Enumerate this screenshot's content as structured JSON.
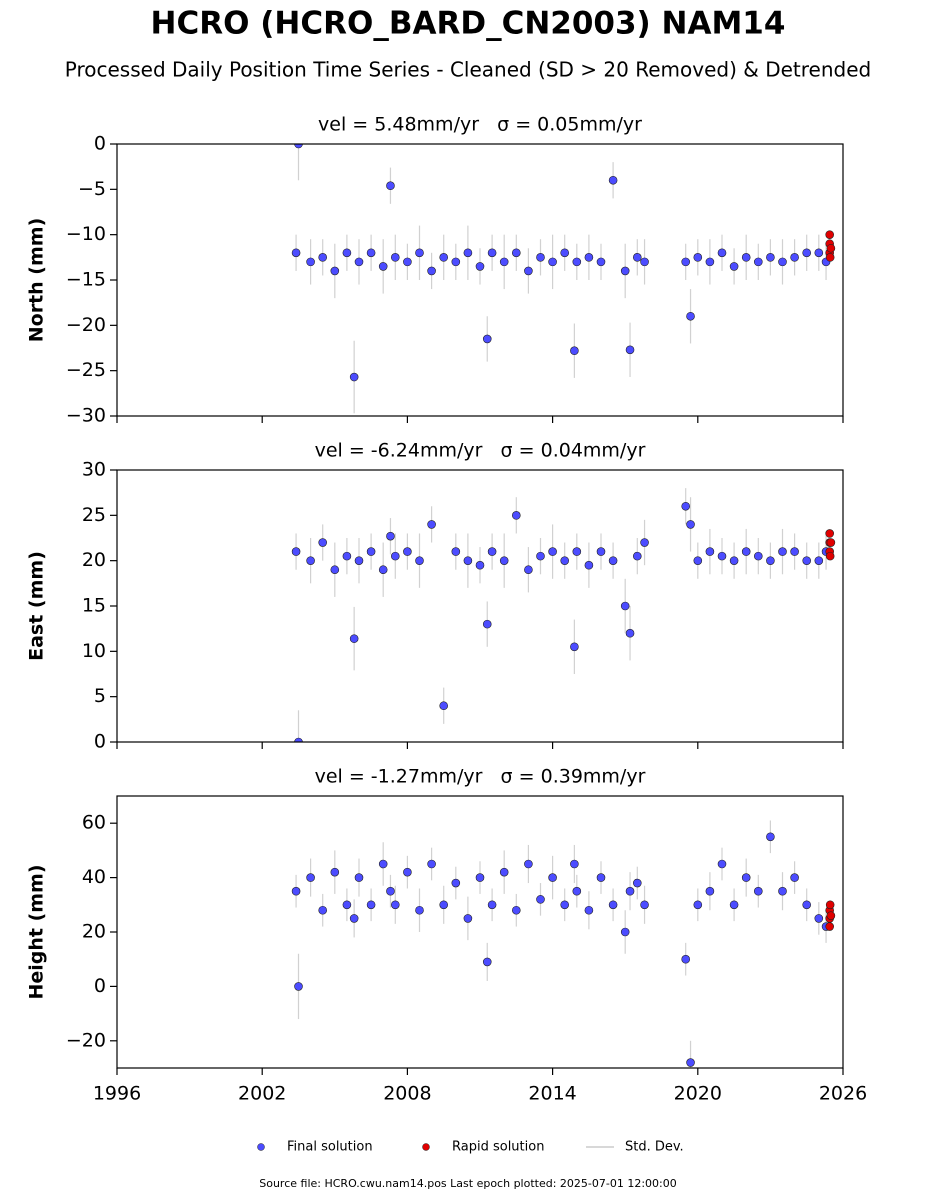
{
  "title": "HCRO (HCRO_BARD_CN2003) NAM14",
  "subtitle": "Processed Daily Position Time Series - Cleaned (SD > 20 Removed) & Detrended",
  "error_name": "Std. Dev.",
  "footer": "Source file: HCRO.cwu.nam14.pos  Last epoch plotted: 2025-07-01 12:00:00",
  "chart_data": [
    {
      "type": "scatter",
      "title": "vel = 5.48mm/yr   σ = 0.05mm/yr",
      "y_label": "North (mm)",
      "xlim": [
        1996,
        2026
      ],
      "xticks": [
        1996,
        2002,
        2008,
        2014,
        2020,
        2026
      ],
      "ylim": [
        -30,
        0
      ],
      "yticks": [
        0,
        {
          "value": -5,
          "label": "−5"
        },
        {
          "value": -10,
          "label": "−10"
        },
        {
          "value": -15,
          "label": "−15"
        },
        {
          "value": -20,
          "label": "−20"
        },
        {
          "value": -25,
          "label": "−25"
        },
        {
          "value": -30,
          "label": "−30"
        }
      ],
      "series": [
        {
          "name": "Final solution",
          "color": "#4c4cff",
          "x": [
            2003.4,
            2003.5,
            2004.0,
            2004.5,
            2005.0,
            2005.5,
            2005.8,
            2006.0,
            2006.5,
            2007.0,
            2007.3,
            2007.5,
            2008.0,
            2008.5,
            2009.0,
            2009.5,
            2010.0,
            2010.5,
            2011.0,
            2011.3,
            2011.5,
            2012.0,
            2012.5,
            2013.0,
            2013.5,
            2014.0,
            2014.5,
            2014.9,
            2015.0,
            2015.5,
            2016.0,
            2016.5,
            2017.0,
            2017.2,
            2017.5,
            2017.8,
            2019.5,
            2019.7,
            2020.0,
            2020.5,
            2021.0,
            2021.5,
            2022.0,
            2022.5,
            2023.0,
            2023.5,
            2024.0,
            2024.5,
            2025.0,
            2025.3
          ],
          "values": [
            -12,
            0,
            -13,
            -12.5,
            -14,
            -12,
            -25.7,
            -13,
            -12,
            -13.5,
            -4.6,
            -12.5,
            -13,
            -12,
            -14,
            -12.5,
            -13,
            -12,
            -13.5,
            -21.5,
            -12,
            -13,
            -12,
            -14,
            -12.5,
            -13,
            -12,
            -22.8,
            -13,
            -12.5,
            -13,
            -4,
            -14,
            -22.7,
            -12.5,
            -13,
            -13,
            -19,
            -12.5,
            -13,
            -12,
            -13.5,
            -12.5,
            -13,
            -12.5,
            -13,
            -12.5,
            -12,
            -12,
            -13
          ],
          "errors": [
            2,
            4,
            2.5,
            2,
            3,
            2,
            4,
            2.5,
            2,
            3,
            2,
            2.5,
            2,
            3,
            2,
            2.5,
            2,
            3,
            2,
            2.5,
            2,
            3,
            2,
            2.5,
            2,
            3,
            2,
            3,
            2,
            2.5,
            2,
            2,
            3,
            3,
            2,
            2.5,
            2,
            3,
            2,
            2.5,
            2,
            2,
            2.5,
            2,
            2,
            2.5,
            2,
            2,
            2,
            2
          ]
        },
        {
          "name": "Rapid solution",
          "color": "#e00000",
          "x": [
            2025.45,
            2025.45,
            2025.45,
            2025.47,
            2025.5
          ],
          "values": [
            -10,
            -11,
            -12,
            -12.5,
            -11.5
          ]
        }
      ]
    },
    {
      "type": "scatter",
      "title": "vel = -6.24mm/yr   σ = 0.04mm/yr",
      "y_label": "East (mm)",
      "xlim": [
        1996,
        2026
      ],
      "xticks": [
        1996,
        2002,
        2008,
        2014,
        2020,
        2026
      ],
      "ylim": [
        0,
        30
      ],
      "yticks": [
        0,
        5,
        10,
        15,
        20,
        25,
        30
      ],
      "series": [
        {
          "name": "Final solution",
          "color": "#4c4cff",
          "x": [
            2003.4,
            2003.5,
            2004.0,
            2004.5,
            2005.0,
            2005.5,
            2005.8,
            2006.0,
            2006.5,
            2007.0,
            2007.3,
            2007.5,
            2008.0,
            2008.5,
            2009.0,
            2009.5,
            2010.0,
            2010.5,
            2011.0,
            2011.3,
            2011.5,
            2012.0,
            2012.5,
            2013.0,
            2013.5,
            2014.0,
            2014.5,
            2014.9,
            2015.0,
            2015.5,
            2016.0,
            2016.5,
            2017.0,
            2017.2,
            2017.5,
            2017.8,
            2019.5,
            2019.7,
            2020.0,
            2020.5,
            2021.0,
            2021.5,
            2022.0,
            2022.5,
            2023.0,
            2023.5,
            2024.0,
            2024.5,
            2025.0,
            2025.3
          ],
          "values": [
            21,
            0,
            20,
            22,
            19,
            20.5,
            11.4,
            20,
            21,
            19,
            22.7,
            20.5,
            21,
            20,
            24,
            4,
            21,
            20,
            19.5,
            13,
            21,
            20,
            25,
            19,
            20.5,
            21,
            20,
            10.5,
            21,
            19.5,
            21,
            20,
            15,
            12,
            20.5,
            22,
            26,
            24,
            20,
            21,
            20.5,
            20,
            21,
            20.5,
            20,
            21,
            21,
            20,
            20,
            21
          ],
          "errors": [
            2,
            3.5,
            2.5,
            2,
            3,
            2,
            3.5,
            2.5,
            2,
            3,
            2,
            2.5,
            2,
            3,
            2,
            2,
            2,
            3,
            2,
            2.5,
            2,
            3,
            2,
            2.5,
            2,
            3,
            2,
            3,
            2,
            2.5,
            2,
            2,
            3,
            3,
            2,
            2.5,
            2,
            3,
            2,
            2.5,
            2,
            2,
            2.5,
            2,
            2,
            2.5,
            2,
            2,
            2,
            2
          ]
        },
        {
          "name": "Rapid solution",
          "color": "#e00000",
          "x": [
            2025.45,
            2025.45,
            2025.45,
            2025.47,
            2025.5
          ],
          "values": [
            21,
            22,
            23,
            20.5,
            22
          ]
        }
      ]
    },
    {
      "type": "scatter",
      "title": "vel = -1.27mm/yr   σ = 0.39mm/yr",
      "y_label": "Height (mm)",
      "xlim": [
        1996,
        2026
      ],
      "xticks": [
        1996,
        2002,
        2008,
        2014,
        2020,
        2026
      ],
      "ylim": [
        -30,
        70
      ],
      "yticks": [
        {
          "value": -20,
          "label": "−20"
        },
        0,
        20,
        40,
        60
      ],
      "series": [
        {
          "name": "Final solution",
          "color": "#4c4cff",
          "x": [
            2003.4,
            2003.5,
            2004.0,
            2004.5,
            2005.0,
            2005.5,
            2005.8,
            2006.0,
            2006.5,
            2007.0,
            2007.3,
            2007.5,
            2008.0,
            2008.5,
            2009.0,
            2009.5,
            2010.0,
            2010.5,
            2011.0,
            2011.3,
            2011.5,
            2012.0,
            2012.5,
            2013.0,
            2013.5,
            2014.0,
            2014.5,
            2014.9,
            2015.0,
            2015.5,
            2016.0,
            2016.5,
            2017.0,
            2017.2,
            2017.5,
            2017.8,
            2019.5,
            2019.7,
            2020.0,
            2020.5,
            2021.0,
            2021.5,
            2022.0,
            2022.5,
            2023.0,
            2023.5,
            2024.0,
            2024.5,
            2025.0,
            2025.3
          ],
          "values": [
            35,
            0,
            40,
            28,
            42,
            30,
            25,
            40,
            30,
            45,
            35,
            30,
            42,
            28,
            45,
            30,
            38,
            25,
            40,
            9,
            30,
            42,
            28,
            45,
            32,
            40,
            30,
            45,
            35,
            28,
            40,
            30,
            20,
            35,
            38,
            30,
            10,
            -28,
            30,
            35,
            45,
            30,
            40,
            35,
            55,
            35,
            40,
            30,
            25,
            22
          ],
          "errors": [
            6,
            12,
            7,
            6,
            8,
            6,
            7,
            7,
            6,
            8,
            6,
            7,
            6,
            8,
            6,
            7,
            6,
            8,
            6,
            7,
            6,
            8,
            6,
            7,
            6,
            8,
            6,
            7,
            6,
            7,
            6,
            6,
            8,
            7,
            6,
            7,
            6,
            8,
            6,
            7,
            6,
            6,
            7,
            6,
            6,
            7,
            6,
            6,
            6,
            6
          ]
        },
        {
          "name": "Rapid solution",
          "color": "#e00000",
          "x": [
            2025.45,
            2025.45,
            2025.45,
            2025.47,
            2025.5
          ],
          "values": [
            22,
            25,
            28,
            30,
            26
          ]
        }
      ]
    }
  ]
}
